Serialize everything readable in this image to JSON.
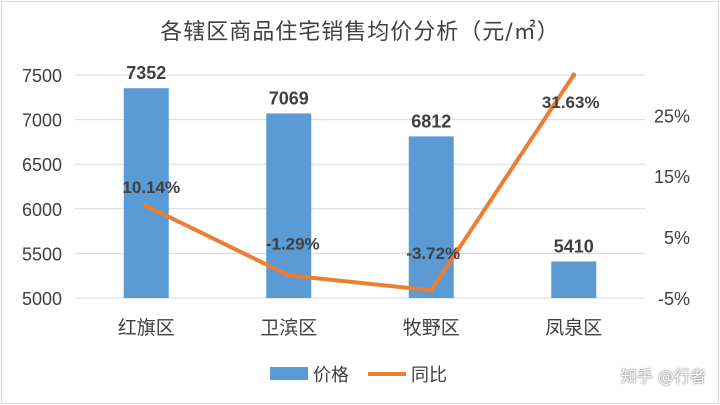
{
  "chart_data": {
    "type": "bar+line",
    "title": "各辖区商品住宅销售均价分析（元/㎡）",
    "categories": [
      "红旗区",
      "卫滨区",
      "牧野区",
      "凤泉区"
    ],
    "series": [
      {
        "name": "价格",
        "type": "bar",
        "axis": "left",
        "color": "#5b9bd5",
        "values": [
          7352,
          7069,
          6812,
          5410
        ],
        "labels": [
          "7352",
          "7069",
          "6812",
          "5410"
        ]
      },
      {
        "name": "同比",
        "type": "line",
        "axis": "right",
        "color": "#ed7d31",
        "values": [
          10.14,
          -1.29,
          -3.72,
          31.63
        ],
        "labels": [
          "10.14%",
          "-1.29%",
          "-3.72%",
          "31.63%"
        ]
      }
    ],
    "y_left": {
      "min": 5000,
      "max": 7500,
      "ticks": [
        "5000",
        "5500",
        "6000",
        "6500",
        "7000",
        "7500"
      ]
    },
    "y_right": {
      "min": -5,
      "max": 31.63,
      "ticks": [
        "-5%",
        "5%",
        "15%",
        "25%"
      ],
      "tick_values": [
        -5,
        5,
        15,
        25
      ]
    },
    "grid": true,
    "legend_position": "bottom"
  },
  "watermark": "知乎 @行者"
}
